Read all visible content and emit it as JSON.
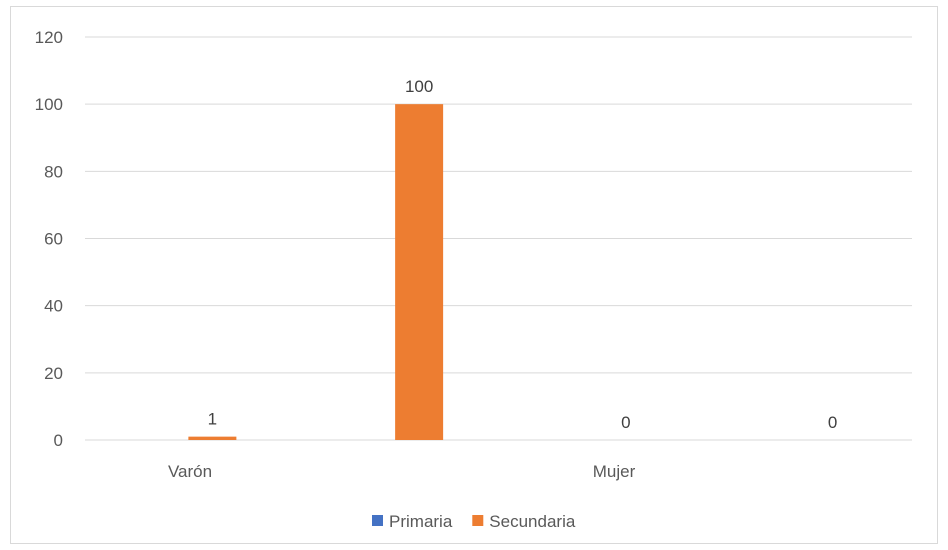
{
  "chart_data": {
    "type": "bar",
    "title": "",
    "xlabel": "",
    "ylabel": "",
    "ylim": [
      0,
      120
    ],
    "y_ticks": [
      0,
      20,
      40,
      60,
      80,
      100,
      120
    ],
    "grid": true,
    "legend_position": "bottom",
    "categories": [
      "Varón",
      "",
      "Mujer",
      ""
    ],
    "series": [
      {
        "name": "Primaria",
        "color": "#4472C4",
        "values": [
          0,
          0,
          0,
          0
        ],
        "labels": [
          "",
          "",
          "",
          ""
        ]
      },
      {
        "name": "Secundaria",
        "color": "#ED7D31",
        "values": [
          1,
          100,
          0,
          0
        ],
        "labels": [
          "1",
          "100",
          "0",
          "0"
        ]
      }
    ]
  }
}
